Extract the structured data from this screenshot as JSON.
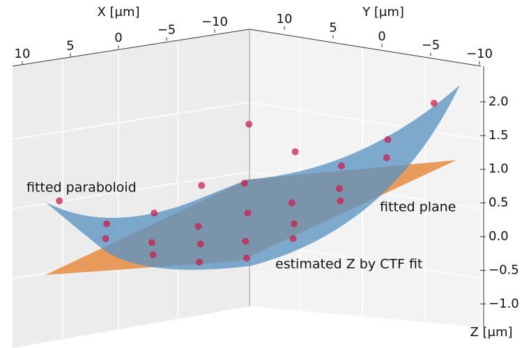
{
  "chart_data": {
    "type": "scatter3d",
    "x_label": "X [μm]",
    "y_label": "Y [μm]",
    "z_label": "Z [μm]",
    "annotations": [
      "fitted paraboloid",
      "fitted plane",
      "estimated Z by CTF fit"
    ],
    "annotation_colors": [
      "#3f7fb8",
      "#d9782a",
      "#c0244f"
    ],
    "xlim": [
      10,
      -10
    ],
    "ylim": [
      10,
      -10
    ],
    "zlim": [
      -1.25,
      2.5
    ],
    "xticks": [
      10,
      5,
      0,
      {
        "value": -5,
        "label": "−5"
      },
      {
        "value": -10,
        "label": "−10"
      }
    ],
    "yticks": [
      10,
      5,
      0,
      {
        "value": -5,
        "label": "−5"
      },
      {
        "value": -10,
        "label": "−10"
      }
    ],
    "zticks": [
      {
        "value": 2,
        "label": "2.0"
      },
      {
        "value": 1.5,
        "label": "1.5"
      },
      {
        "value": 1,
        "label": "1.0"
      },
      {
        "value": 0.5,
        "label": "0.5"
      },
      {
        "value": 0,
        "label": "0.0"
      },
      {
        "value": -0.5,
        "label": "−0.5"
      },
      {
        "value": -1,
        "label": "−1.0"
      }
    ],
    "series": [
      {
        "name": "estimated Z by CTF fit",
        "color": "#c8204f",
        "x": [
          -8,
          -8,
          -8,
          -8,
          -8,
          -4,
          -4,
          -4,
          -4,
          -4,
          0,
          0,
          0,
          0,
          0,
          4,
          4,
          4,
          4,
          4,
          8,
          8,
          8,
          8,
          8
        ],
        "y": [
          -8,
          -4,
          0,
          4,
          8,
          -8,
          -4,
          0,
          4,
          8,
          -8,
          -4,
          0,
          4,
          8,
          -8,
          -4,
          0,
          4,
          8,
          -8,
          -4,
          0,
          4,
          8
        ],
        "z": [
          1.95,
          1.3,
          0.8,
          0.9,
          1.2,
          1.25,
          0.5,
          0.05,
          0.1,
          0.4,
          0.9,
          0.05,
          -0.35,
          -0.25,
          0.1,
          0.8,
          0.12,
          -0.3,
          -0.3,
          0.05,
          1.2,
          0.45,
          0.1,
          0.05,
          0.5
        ]
      }
    ]
  }
}
